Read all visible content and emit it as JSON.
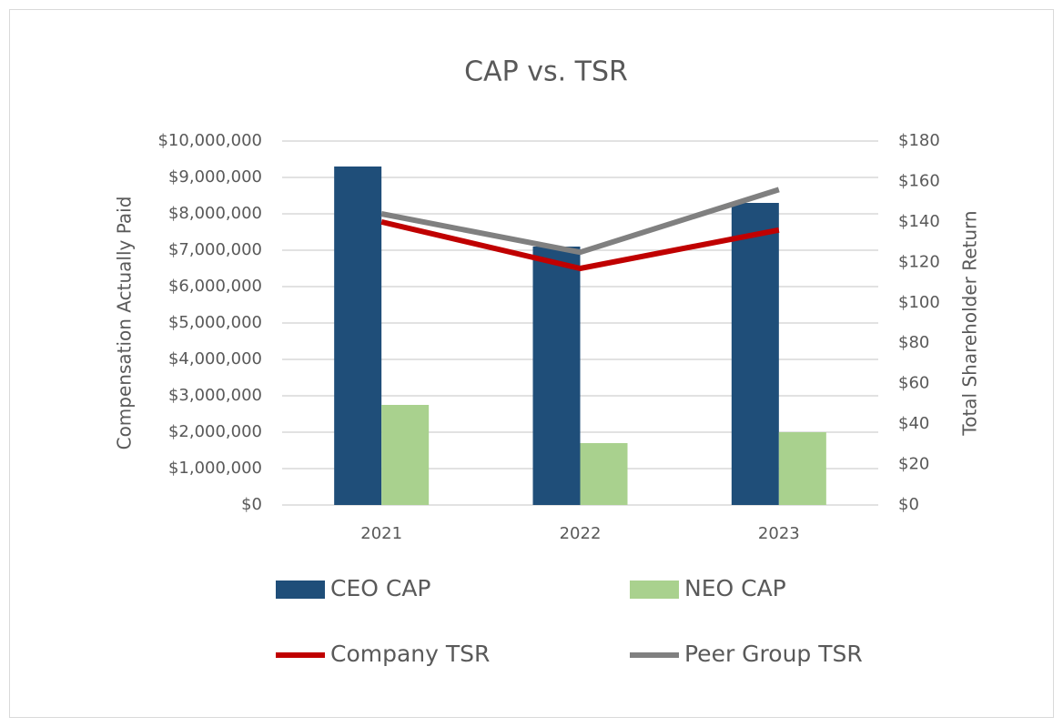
{
  "chart_data": {
    "type": "bar",
    "title": "CAP vs. TSR",
    "y_label": "Compensation Actually Paid",
    "y2_label": "Total Shareholder Return",
    "categories": [
      "2021",
      "2022",
      "2023"
    ],
    "series": [
      {
        "name": "CEO CAP",
        "type": "bar",
        "color": "#1f4e79",
        "values": [
          9300000,
          7100000,
          8300000
        ]
      },
      {
        "name": "NEO CAP",
        "type": "bar",
        "color": "#a9d18e",
        "values": [
          2750000,
          1700000,
          2000000
        ]
      },
      {
        "name": "Company TSR",
        "type": "line",
        "axis": "y2",
        "color": "#c00000",
        "values": [
          140,
          117,
          136
        ]
      },
      {
        "name": "Peer Group TSR",
        "type": "line",
        "axis": "y2",
        "color": "#808080",
        "values": [
          144,
          125,
          156
        ]
      }
    ],
    "ylim": [
      0,
      10000000
    ],
    "yticks": [
      {
        "value": 0,
        "label": "$0"
      },
      {
        "value": 1000000,
        "label": "$1,000,000"
      },
      {
        "value": 2000000,
        "label": "$2,000,000"
      },
      {
        "value": 3000000,
        "label": "$3,000,000"
      },
      {
        "value": 4000000,
        "label": "$4,000,000"
      },
      {
        "value": 5000000,
        "label": "$5,000,000"
      },
      {
        "value": 6000000,
        "label": "$6,000,000"
      },
      {
        "value": 7000000,
        "label": "$7,000,000"
      },
      {
        "value": 8000000,
        "label": "$8,000,000"
      },
      {
        "value": 9000000,
        "label": "$9,000,000"
      },
      {
        "value": 10000000,
        "label": "$10,000,000"
      }
    ],
    "y2lim": [
      0,
      180
    ],
    "y2ticks": [
      {
        "value": 0,
        "label": "$0"
      },
      {
        "value": 20,
        "label": "$20"
      },
      {
        "value": 40,
        "label": "$40"
      },
      {
        "value": 60,
        "label": "$60"
      },
      {
        "value": 80,
        "label": "$80"
      },
      {
        "value": 100,
        "label": "$100"
      },
      {
        "value": 120,
        "label": "$120"
      },
      {
        "value": 140,
        "label": "$140"
      },
      {
        "value": 160,
        "label": "$160"
      },
      {
        "value": 180,
        "label": "$180"
      }
    ],
    "grid": true
  }
}
